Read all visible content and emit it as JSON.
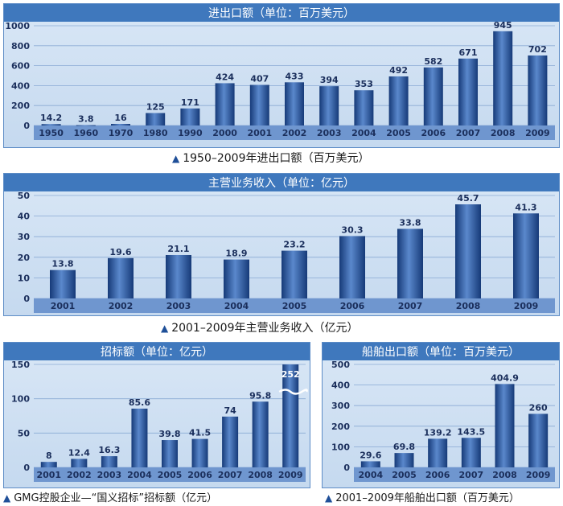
{
  "chart_data": [
    {
      "type": "bar",
      "title": "进出口额（单位：百万美元）",
      "caption": "1950–2009年进出口额（百万美元）",
      "categories": [
        "1950",
        "1960",
        "1970",
        "1980",
        "1990",
        "2000",
        "2001",
        "2002",
        "2003",
        "2004",
        "2005",
        "2006",
        "2007",
        "2008",
        "2009"
      ],
      "values": [
        14.2,
        3.8,
        16,
        125,
        171,
        424,
        407,
        433,
        394,
        353,
        492,
        582,
        671,
        945,
        702
      ],
      "value_labels": [
        "14.2",
        "3.8",
        "16",
        "125",
        "171",
        "424",
        "407",
        "433",
        "394",
        "353",
        "492",
        "582",
        "671",
        "945",
        "702"
      ],
      "yticks": [
        "0",
        "200",
        "400",
        "600",
        "800",
        "1000"
      ],
      "ylim": [
        0,
        1000
      ],
      "grid": true
    },
    {
      "type": "bar",
      "title": "主营业务收入（单位：亿元）",
      "caption": "2001–2009年主营业务收入（亿元）",
      "categories": [
        "2001",
        "2002",
        "2003",
        "2004",
        "2005",
        "2006",
        "2007",
        "2008",
        "2009"
      ],
      "values": [
        13.8,
        19.6,
        21.1,
        18.9,
        23.2,
        30.3,
        33.8,
        45.7,
        41.3
      ],
      "value_labels": [
        "13.8",
        "19.6",
        "21.1",
        "18.9",
        "23.2",
        "30.3",
        "33.8",
        "45.7",
        "41.3"
      ],
      "yticks": [
        "0",
        "10",
        "20",
        "30",
        "40",
        "50"
      ],
      "ylim": [
        0,
        50
      ],
      "grid": true
    },
    {
      "type": "bar",
      "title": "招标额（单位：亿元）",
      "caption": "GMG控股企业—“国义招标”招标额（亿元）",
      "categories": [
        "2001",
        "2002",
        "2003",
        "2004",
        "2005",
        "2006",
        "2007",
        "2008",
        "2009"
      ],
      "values": [
        8,
        12.4,
        16.3,
        85.6,
        39.8,
        41.5,
        74,
        95.8,
        252
      ],
      "value_labels": [
        "8",
        "12.4",
        "16.3",
        "85.6",
        "39.8",
        "41.5",
        "74",
        "95.8",
        "252"
      ],
      "yticks": [
        "0",
        "50",
        "100",
        "150"
      ],
      "ylim": [
        0,
        150
      ],
      "axis_break_on_last": true,
      "grid": true
    },
    {
      "type": "bar",
      "title": "船舶出口额（单位：百万美元）",
      "caption": "2001–2009年船舶出口额（百万美元）",
      "categories": [
        "2004",
        "2005",
        "2006",
        "2007",
        "2008",
        "2009"
      ],
      "values": [
        29.6,
        69.8,
        139.2,
        143.5,
        404.9,
        260
      ],
      "value_labels": [
        "29.6",
        "69.8",
        "139.2",
        "143.5",
        "404.9",
        "260"
      ],
      "yticks": [
        "0",
        "100",
        "200",
        "300",
        "400",
        "500"
      ],
      "ylim": [
        0,
        500
      ],
      "grid": true
    }
  ],
  "colors": {
    "plot_bg": "#c5d9ef",
    "frame": "#5d8cc6",
    "title_bg": "#3f78bd",
    "bar_dark": "#163a78",
    "bar_mid": "#3a68b0",
    "bar_light": "#5a88cc",
    "grid": "#8aaad4",
    "axis_band": "#6f96cf",
    "text": "#1b2f5c"
  }
}
